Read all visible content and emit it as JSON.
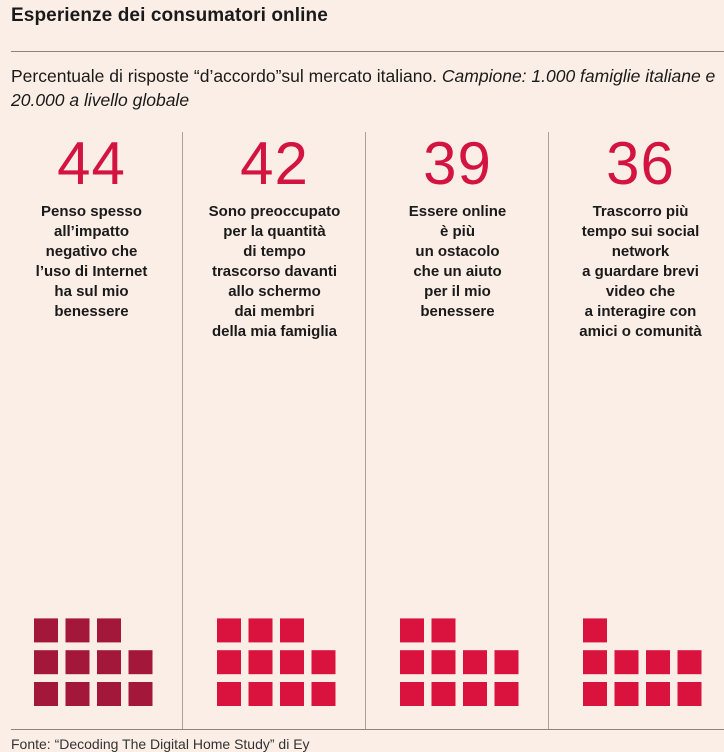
{
  "title": "Esperienze dei consumatori online",
  "subtitle_regular": "Percentuale di risposte “d’accordo”sul mercato italiano. ",
  "subtitle_italic": "Campione: 1.000 famiglie italiane e 20.000 a livello globale",
  "source": "Fonte: “Decoding The Digital Home Study” di Ey",
  "colors": {
    "accent": "#d31440",
    "dark_square": "#a3173b",
    "bright_square": "#d9123e",
    "background": "#fbeee6"
  },
  "chart_data": {
    "type": "waffle",
    "units": "percent",
    "squares_per_row": 4,
    "items": [
      {
        "value": 44,
        "display": "44",
        "label": "Penso spesso all’impatto negativo che l’uso di Internet ha sul mio benessere"
      },
      {
        "value": 42,
        "display": "42",
        "label": "Sono preoccupato per la quantità di tempo trascorso davanti allo schermo dai membri della mia famiglia"
      },
      {
        "value": 39,
        "display": "39",
        "label": "Essere online è più un ostacolo che un aiuto per il mio benessere"
      },
      {
        "value": 36,
        "display": "36",
        "label": "Trascorro più tempo sui social network a guardare brevi video che a interagire con amici o comunità"
      }
    ]
  },
  "columns": [
    {
      "number": "44",
      "lines": [
        "Penso spesso",
        "all’impatto",
        "negativo che",
        "l’uso di Internet",
        "ha sul mio",
        "benessere"
      ]
    },
    {
      "number": "42",
      "lines": [
        "Sono preoccupato",
        "per la quantità",
        "di tempo",
        "trascorso davanti",
        "allo schermo",
        "dai membri",
        "della mia famiglia"
      ]
    },
    {
      "number": "39",
      "lines": [
        "Essere online",
        "è più",
        "un ostacolo",
        "che un aiuto",
        "per il mio",
        "benessere"
      ]
    },
    {
      "number": "36",
      "lines": [
        "Trascorro più",
        "tempo sui social",
        "network",
        "a guardare brevi",
        "video che",
        "a interagire con",
        "amici o comunità"
      ]
    }
  ]
}
